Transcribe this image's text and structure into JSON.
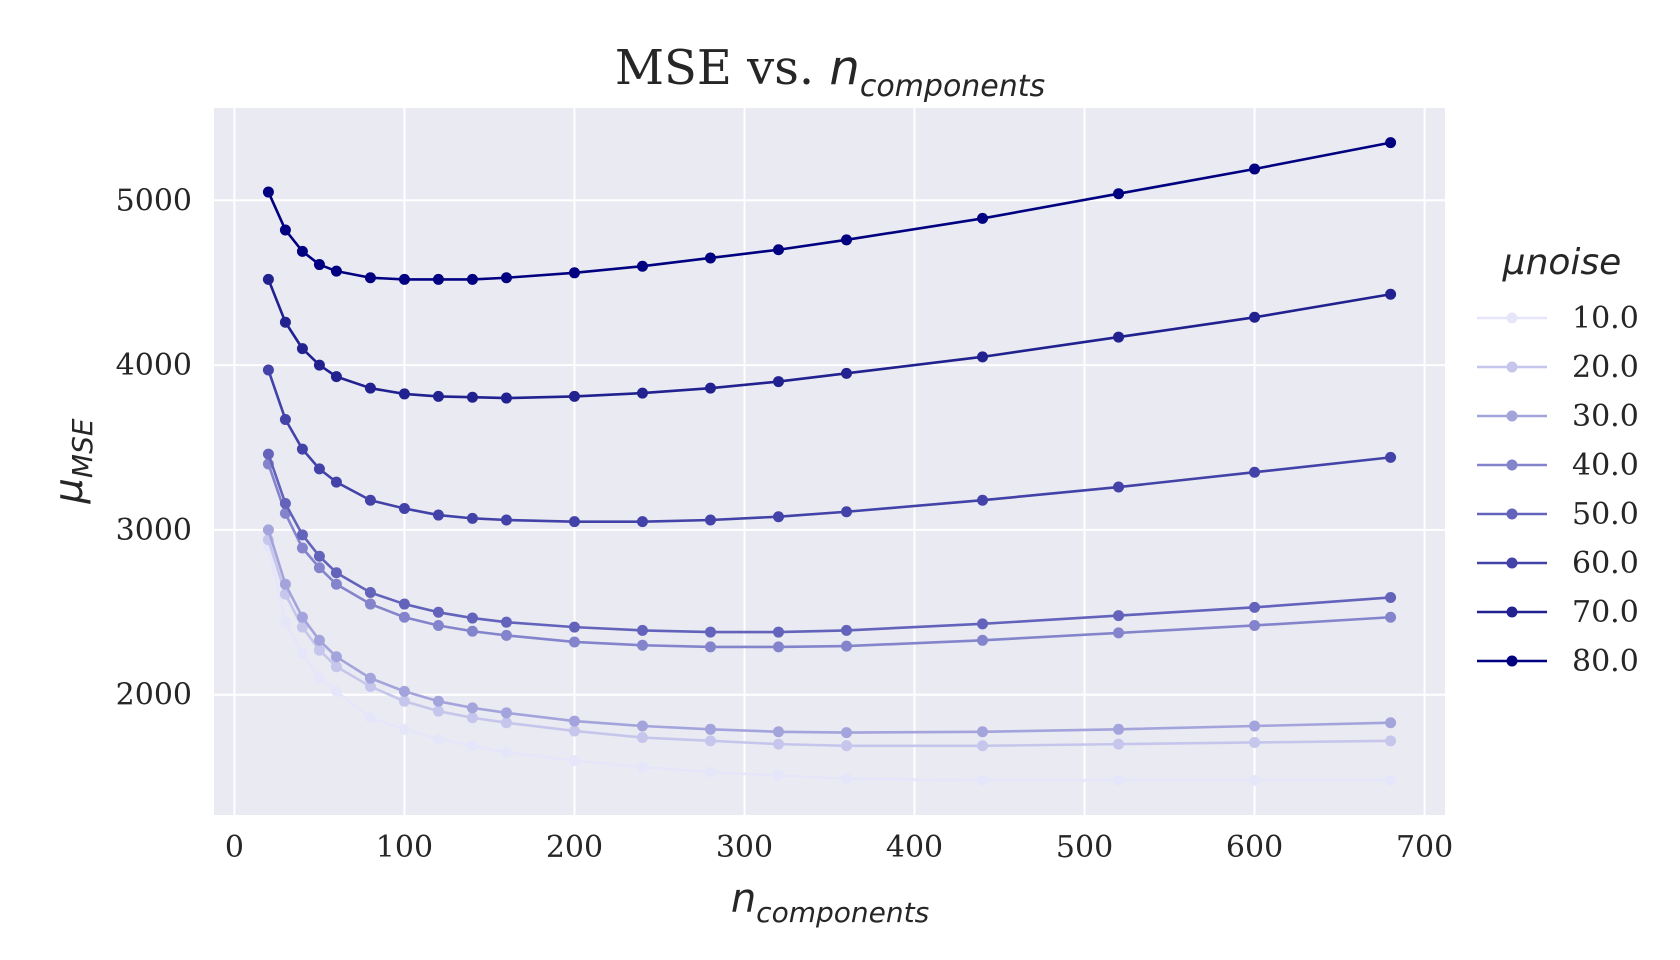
{
  "chart_data": {
    "type": "line",
    "title": "MSE vs. n_components",
    "title_parts": {
      "prefix": "MSE vs. ",
      "var": "n",
      "sub": "components"
    },
    "xlabel": {
      "var": "n",
      "sub": "components"
    },
    "ylabel": {
      "var": "μ",
      "sub": "MSE"
    },
    "xlim": [
      -12,
      712
    ],
    "ylim": [
      1270,
      5560
    ],
    "x_ticks": [
      0,
      100,
      200,
      300,
      400,
      500,
      600,
      700
    ],
    "y_ticks": [
      2000,
      3000,
      4000,
      5000
    ],
    "grid": true,
    "legend": {
      "title": "μnoise",
      "placement": "right"
    },
    "x": [
      20,
      30,
      40,
      50,
      60,
      80,
      100,
      120,
      140,
      160,
      200,
      240,
      280,
      320,
      360,
      440,
      520,
      600,
      680
    ],
    "series": [
      {
        "name": "10.0",
        "color": "#e6e6fa",
        "values": [
          2900,
          2440,
          2250,
          2100,
          2020,
          1860,
          1790,
          1730,
          1690,
          1650,
          1600,
          1560,
          1530,
          1510,
          1490,
          1480,
          1480,
          1480,
          1480
        ]
      },
      {
        "name": "20.0",
        "color": "#c6c6ec",
        "values": [
          2940,
          2610,
          2410,
          2270,
          2170,
          2050,
          1960,
          1900,
          1860,
          1830,
          1780,
          1740,
          1720,
          1700,
          1690,
          1690,
          1700,
          1710,
          1720
        ]
      },
      {
        "name": "30.0",
        "color": "#a4a4dc",
        "values": [
          3000,
          2670,
          2470,
          2330,
          2230,
          2100,
          2020,
          1960,
          1920,
          1890,
          1840,
          1810,
          1790,
          1775,
          1770,
          1775,
          1790,
          1810,
          1830
        ]
      },
      {
        "name": "40.0",
        "color": "#8484cc",
        "values": [
          3400,
          3100,
          2890,
          2770,
          2670,
          2550,
          2470,
          2420,
          2385,
          2360,
          2320,
          2300,
          2290,
          2290,
          2295,
          2330,
          2375,
          2420,
          2470
        ]
      },
      {
        "name": "50.0",
        "color": "#6363bb",
        "values": [
          3460,
          3160,
          2970,
          2840,
          2740,
          2620,
          2550,
          2500,
          2465,
          2440,
          2410,
          2390,
          2380,
          2380,
          2390,
          2430,
          2480,
          2530,
          2590
        ]
      },
      {
        "name": "60.0",
        "color": "#4242a8",
        "values": [
          3970,
          3670,
          3490,
          3370,
          3290,
          3180,
          3130,
          3090,
          3070,
          3060,
          3050,
          3050,
          3060,
          3080,
          3110,
          3180,
          3260,
          3350,
          3440
        ]
      },
      {
        "name": "70.0",
        "color": "#21218f",
        "values": [
          4520,
          4260,
          4100,
          4000,
          3930,
          3860,
          3825,
          3810,
          3805,
          3800,
          3810,
          3830,
          3860,
          3900,
          3950,
          4050,
          4170,
          4290,
          4430
        ]
      },
      {
        "name": "80.0",
        "color": "#000080",
        "values": [
          5050,
          4820,
          4690,
          4610,
          4570,
          4530,
          4520,
          4520,
          4520,
          4530,
          4560,
          4600,
          4650,
          4700,
          4760,
          4890,
          5040,
          5190,
          5350
        ]
      }
    ]
  }
}
